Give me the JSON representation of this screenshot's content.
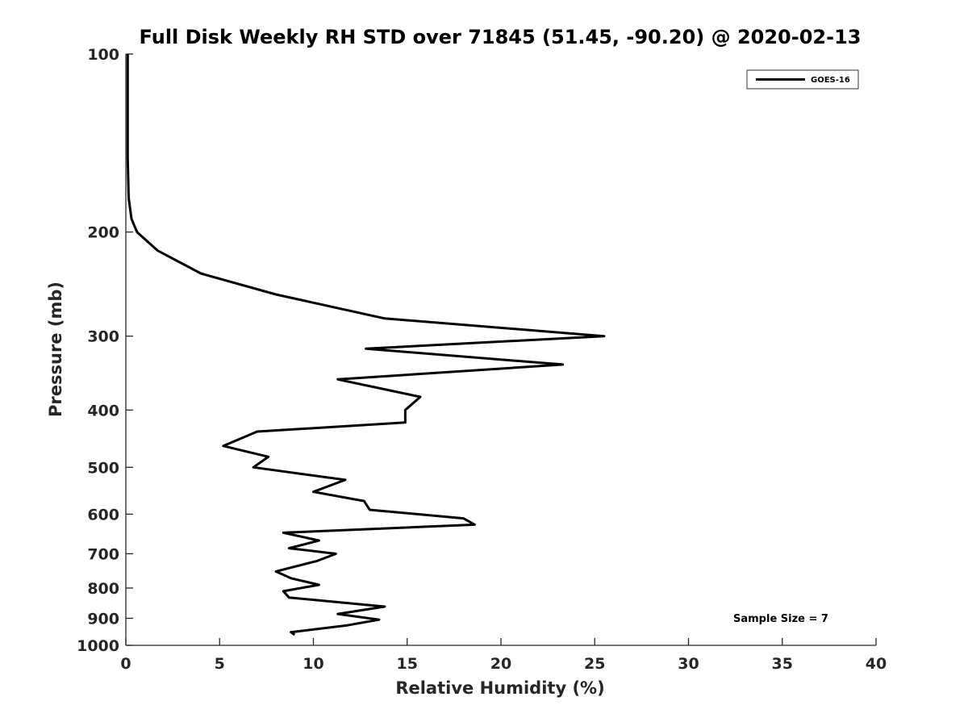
{
  "chart_data": {
    "type": "line",
    "title": "Full Disk Weekly RH STD over 71845 (51.45, -90.20) @ 2020-02-13",
    "xlabel": "Relative Humidity (%)",
    "ylabel": "Pressure (mb)",
    "xlim": [
      0,
      40
    ],
    "ylim": [
      100,
      1000
    ],
    "yscale": "log",
    "yreversed": true,
    "xticks": [
      0,
      5,
      10,
      15,
      20,
      25,
      30,
      35,
      40
    ],
    "xtick_labels": [
      "0",
      "5",
      "10",
      "15",
      "20",
      "25",
      "30",
      "35",
      "40"
    ],
    "yticks": [
      100,
      200,
      300,
      400,
      500,
      600,
      700,
      800,
      900,
      1000
    ],
    "ytick_labels": [
      "100",
      "200",
      "300",
      "400",
      "500",
      "600",
      "700",
      "800",
      "900",
      "1000"
    ],
    "grid": false,
    "legend_position": "top-right",
    "series": [
      {
        "name": "GOES-16",
        "color": "#000000",
        "points": [
          [
            0.1,
            100
          ],
          [
            0.1,
            125
          ],
          [
            0.1,
            150
          ],
          [
            0.15,
            175
          ],
          [
            0.3,
            190
          ],
          [
            0.6,
            200
          ],
          [
            1.7,
            215
          ],
          [
            4.0,
            235
          ],
          [
            8.0,
            255
          ],
          [
            13.8,
            280
          ],
          [
            25.5,
            300
          ],
          [
            12.8,
            315
          ],
          [
            23.3,
            335
          ],
          [
            11.3,
            355
          ],
          [
            15.7,
            380
          ],
          [
            14.9,
            400
          ],
          [
            14.9,
            420
          ],
          [
            7.0,
            435
          ],
          [
            5.2,
            460
          ],
          [
            7.6,
            480
          ],
          [
            6.8,
            500
          ],
          [
            11.7,
            525
          ],
          [
            10.0,
            550
          ],
          [
            12.7,
            570
          ],
          [
            13.0,
            590
          ],
          [
            18.0,
            610
          ],
          [
            18.6,
            625
          ],
          [
            8.4,
            645
          ],
          [
            10.3,
            665
          ],
          [
            8.7,
            685
          ],
          [
            11.2,
            700
          ],
          [
            10.2,
            720
          ],
          [
            8.0,
            750
          ],
          [
            8.8,
            770
          ],
          [
            10.3,
            790
          ],
          [
            8.4,
            810
          ],
          [
            8.7,
            830
          ],
          [
            13.8,
            860
          ],
          [
            11.3,
            885
          ],
          [
            13.5,
            905
          ],
          [
            11.8,
            925
          ],
          [
            8.8,
            950
          ],
          [
            9.0,
            960
          ]
        ]
      }
    ],
    "annotation": "Sample Size = 7"
  }
}
